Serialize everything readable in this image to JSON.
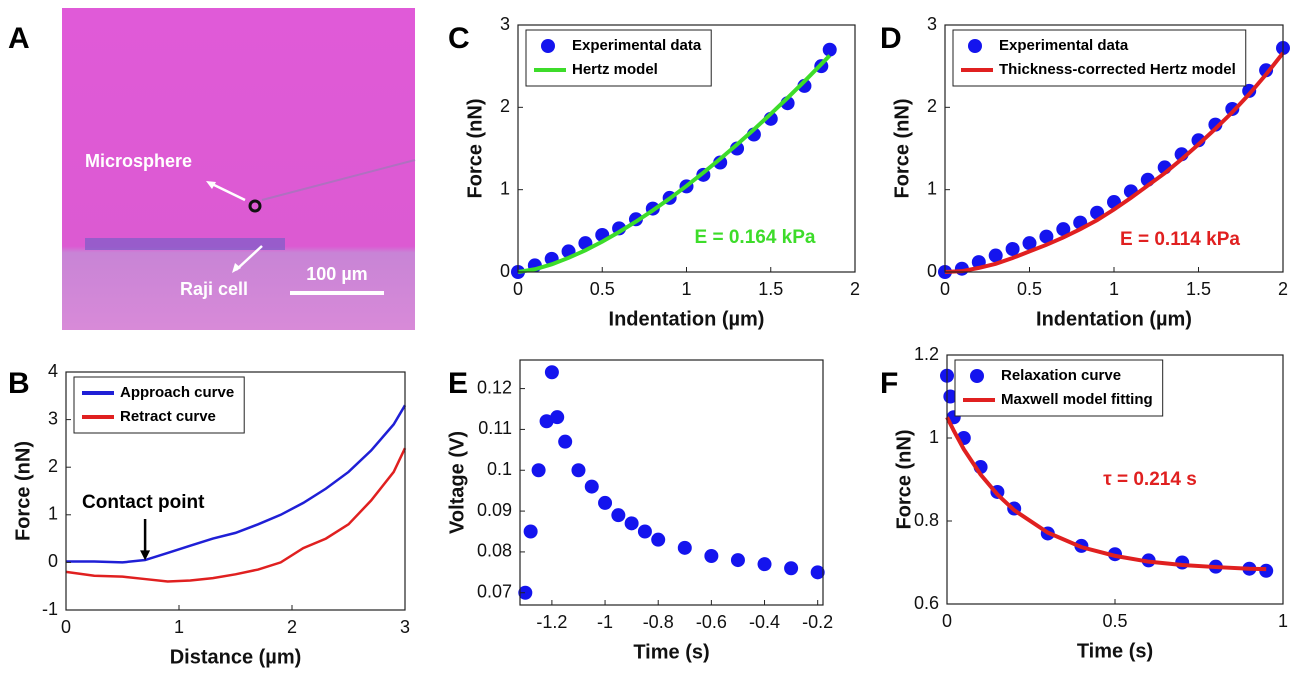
{
  "image_panel": {
    "label": "A",
    "annotations": [
      "Microsphere",
      "Raji cell"
    ],
    "scale_bar": "100 µm"
  },
  "chart_data": [
    {
      "type": "line",
      "panel": "B",
      "x_label": "Distance (µm)",
      "y_label": "Force (nN)",
      "annotation": "Contact point",
      "annotation_color": "#000000",
      "x": [
        0,
        0.25,
        0.5,
        0.7,
        0.9,
        1.1,
        1.3,
        1.5,
        1.7,
        1.9,
        2.1,
        2.3,
        2.5,
        2.7,
        2.9,
        3.0
      ],
      "series": [
        {
          "name": "Approach curve",
          "color": "#1f1fd6",
          "mode": "line",
          "values": [
            0.02,
            0.02,
            0.0,
            0.05,
            0.2,
            0.35,
            0.5,
            0.62,
            0.8,
            1.0,
            1.25,
            1.55,
            1.9,
            2.35,
            2.9,
            3.3
          ]
        },
        {
          "name": "Retract curve",
          "color": "#e02020",
          "mode": "line",
          "values": [
            -0.2,
            -0.28,
            -0.3,
            -0.35,
            -0.4,
            -0.38,
            -0.33,
            -0.25,
            -0.15,
            0.0,
            0.3,
            0.5,
            0.8,
            1.3,
            1.9,
            2.4
          ]
        }
      ],
      "xlim": [
        0,
        3
      ],
      "xticks": [
        0,
        1,
        2,
        3
      ],
      "ylim": [
        -1,
        4
      ],
      "yticks": [
        -1,
        0,
        1,
        2,
        3,
        4
      ]
    },
    {
      "type": "line",
      "panel": "C",
      "x_label": "Indentation (µm)",
      "y_label": "Force (nN)",
      "annotation": "E = 0.164 kPa",
      "annotation_color": "#3ddc2a",
      "x": [
        0,
        0.1,
        0.2,
        0.3,
        0.4,
        0.5,
        0.6,
        0.7,
        0.8,
        0.9,
        1.0,
        1.1,
        1.2,
        1.3,
        1.4,
        1.5,
        1.6,
        1.7,
        1.8,
        1.85
      ],
      "series": [
        {
          "name": "Experimental data",
          "color": "#1414ee",
          "mode": "markers",
          "values": [
            0,
            0.08,
            0.16,
            0.25,
            0.35,
            0.45,
            0.53,
            0.64,
            0.77,
            0.9,
            1.04,
            1.18,
            1.33,
            1.5,
            1.67,
            1.86,
            2.05,
            2.26,
            2.5,
            2.7
          ]
        },
        {
          "name": "Hertz model",
          "color": "#3ddc2a",
          "mode": "line",
          "values": [
            0,
            0.033,
            0.093,
            0.172,
            0.264,
            0.369,
            0.486,
            0.612,
            0.748,
            0.892,
            1.045,
            1.206,
            1.374,
            1.549,
            1.731,
            1.92,
            2.115,
            2.316,
            2.524,
            2.63
          ]
        }
      ],
      "xlim": [
        0,
        2
      ],
      "xticks": [
        0,
        0.5,
        1,
        1.5,
        2
      ],
      "ylim": [
        0,
        3
      ],
      "yticks": [
        0,
        1,
        2,
        3
      ]
    },
    {
      "type": "line",
      "panel": "D",
      "x_label": "Indentation (µm)",
      "y_label": "Force (nN)",
      "annotation": "E = 0.114 kPa",
      "annotation_color": "#e02020",
      "x": [
        0,
        0.1,
        0.2,
        0.3,
        0.4,
        0.5,
        0.6,
        0.7,
        0.8,
        0.9,
        1.0,
        1.1,
        1.2,
        1.3,
        1.4,
        1.5,
        1.6,
        1.7,
        1.8,
        1.9,
        2.0
      ],
      "series": [
        {
          "name": "Experimental data",
          "color": "#1414ee",
          "mode": "markers",
          "values": [
            0,
            0.04,
            0.12,
            0.2,
            0.28,
            0.35,
            0.43,
            0.52,
            0.6,
            0.72,
            0.85,
            0.98,
            1.12,
            1.27,
            1.43,
            1.6,
            1.79,
            1.98,
            2.2,
            2.45,
            2.72
          ]
        },
        {
          "name": "Thickness-corrected Hertz model",
          "color": "#e02020",
          "mode": "line",
          "values": [
            0,
            0.01,
            0.05,
            0.1,
            0.17,
            0.25,
            0.33,
            0.42,
            0.52,
            0.63,
            0.76,
            0.9,
            1.05,
            1.2,
            1.37,
            1.55,
            1.74,
            1.94,
            2.16,
            2.4,
            2.66
          ]
        }
      ],
      "xlim": [
        0,
        2
      ],
      "xticks": [
        0,
        0.5,
        1,
        1.5,
        2
      ],
      "ylim": [
        0,
        3
      ],
      "yticks": [
        0,
        1,
        2,
        3
      ]
    },
    {
      "type": "line",
      "panel": "E",
      "x_label": "Time (s)",
      "y_label": "Voltage (V)",
      "x": [
        -1.3,
        -1.28,
        -1.25,
        -1.22,
        -1.2,
        -1.18,
        -1.15,
        -1.1,
        -1.05,
        -1.0,
        -0.95,
        -0.9,
        -0.85,
        -0.8,
        -0.7,
        -0.6,
        -0.5,
        -0.4,
        -0.3,
        -0.2
      ],
      "series": [
        {
          "color": "#1414ee",
          "mode": "markers",
          "values": [
            0.07,
            0.085,
            0.1,
            0.112,
            0.124,
            0.113,
            0.107,
            0.1,
            0.096,
            0.092,
            0.089,
            0.087,
            0.085,
            0.083,
            0.081,
            0.079,
            0.078,
            0.077,
            0.076,
            0.075
          ]
        }
      ],
      "xlim": [
        -1.32,
        -0.18
      ],
      "xticks": [
        -1.2,
        -1,
        -0.8,
        -0.6,
        -0.4,
        -0.2
      ],
      "ylim": [
        0.067,
        0.127
      ],
      "yticks": [
        0.07,
        0.08,
        0.09,
        0.1,
        0.11,
        0.12
      ]
    },
    {
      "type": "line",
      "panel": "F",
      "x_label": "Time (s)",
      "y_label": "Force (nN)",
      "annotation": "τ = 0.214 s",
      "annotation_color": "#e02020",
      "x": [
        0,
        0.01,
        0.02,
        0.05,
        0.1,
        0.15,
        0.2,
        0.3,
        0.4,
        0.5,
        0.6,
        0.7,
        0.8,
        0.9,
        0.95
      ],
      "series": [
        {
          "name": "Relaxation curve",
          "color": "#1414ee",
          "mode": "markers",
          "values": [
            1.15,
            1.1,
            1.05,
            1.0,
            0.93,
            0.87,
            0.83,
            0.77,
            0.74,
            0.72,
            0.705,
            0.7,
            0.69,
            0.685,
            0.68
          ]
        },
        {
          "name": "Maxwell model fitting",
          "color": "#e02020",
          "mode": "line",
          "values": [
            1.05,
            1.034,
            1.018,
            0.973,
            0.912,
            0.864,
            0.826,
            0.772,
            0.737,
            0.716,
            0.702,
            0.694,
            0.689,
            0.685,
            0.684
          ]
        }
      ],
      "xlim": [
        0,
        1
      ],
      "xticks": [
        0,
        0.5,
        1
      ],
      "ylim": [
        0.6,
        1.2
      ],
      "yticks": [
        0.6,
        0.8,
        1,
        1.2
      ]
    }
  ]
}
